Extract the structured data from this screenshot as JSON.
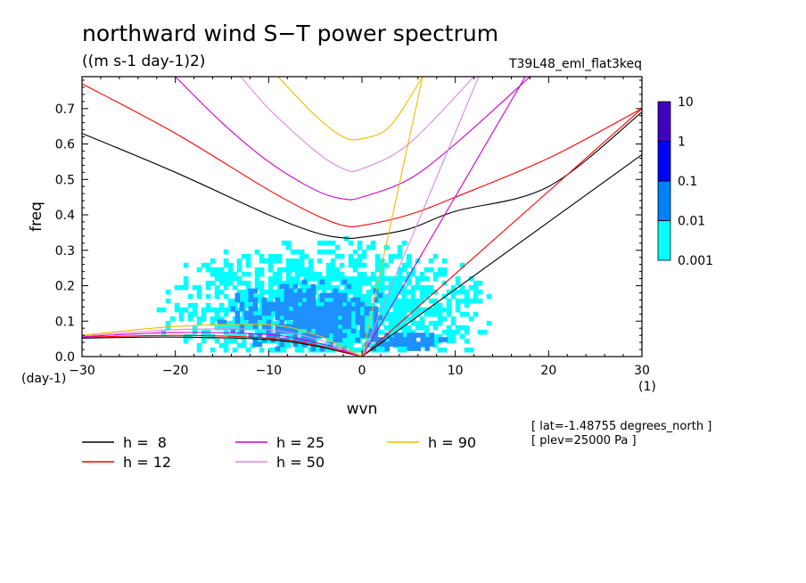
{
  "chart_data": {
    "type": "heatmap",
    "title": "northward wind S−T power spectrum",
    "units": "((m s-1 day-1)2)",
    "experiment": "T39L48_eml_flat3keq",
    "xlabel": "wvn",
    "ylabel": "freq",
    "x_unit": "(1)",
    "y_unit": "(day-1)",
    "xlim": [
      -30,
      30
    ],
    "ylim": [
      0,
      0.79
    ],
    "xticks": [
      "−30",
      "−20",
      "−10",
      "0",
      "10",
      "20",
      "30"
    ],
    "xtick_values": [
      -30,
      -20,
      -10,
      0,
      10,
      20,
      30
    ],
    "yticks": [
      "0.0",
      "0.1",
      "0.2",
      "0.3",
      "0.4",
      "0.5",
      "0.6",
      "0.7"
    ],
    "ytick_values": [
      0,
      0.1,
      0.2,
      0.3,
      0.4,
      0.5,
      0.6,
      0.7
    ],
    "colorbar": {
      "levels": [
        "0.001",
        "0.01",
        "0.1",
        "1",
        "10"
      ],
      "colors": [
        "#00ffff",
        "#0080ff",
        "#0000ff",
        "#4000c0"
      ]
    },
    "contour_regions": [
      {
        "level": "0.001",
        "color": "#00ffff",
        "x": [
          -22,
          14
        ],
        "y": [
          0.02,
          0.34
        ],
        "cx": -4,
        "cy": 0.14
      },
      {
        "level": "0.01",
        "color": "#1e90ff",
        "x": [
          -16,
          2
        ],
        "y": [
          0.02,
          0.23
        ],
        "cx": -6,
        "cy": 0.12
      },
      {
        "level": "0.01",
        "color": "#1e90ff",
        "x": [
          1,
          10
        ],
        "y": [
          0.02,
          0.08
        ],
        "cx": 4,
        "cy": 0.05
      }
    ],
    "legend": [
      {
        "label": "h =  8",
        "color": "#000000"
      },
      {
        "label": "h = 12",
        "color": "#ff0000"
      },
      {
        "label": "h = 25",
        "color": "#cc00cc"
      },
      {
        "label": "h = 50",
        "color": "#dd88dd"
      },
      {
        "label": "h = 90",
        "color": "#eebb00"
      }
    ],
    "annotations": [
      "[ lat=-1.48755 degrees_north ]",
      "[ plev=25000 Pa ]"
    ],
    "curves": {
      "wig": [
        {
          "h": 8,
          "color": "#000000",
          "x": [
            -30,
            -20,
            -10,
            -5,
            -2,
            0,
            5,
            10,
            20,
            30
          ],
          "y": [
            0.63,
            0.52,
            0.4,
            0.35,
            0.335,
            0.337,
            0.36,
            0.41,
            0.48,
            0.69
          ]
        },
        {
          "h": 12,
          "color": "#ff0000",
          "x": [
            -30,
            -20,
            -10,
            -5,
            -2,
            0,
            5,
            10,
            20,
            30
          ],
          "y": [
            0.77,
            0.63,
            0.47,
            0.4,
            0.37,
            0.37,
            0.4,
            0.45,
            0.56,
            0.7
          ]
        },
        {
          "h": 25,
          "color": "#cc00cc",
          "x": [
            -20,
            -15,
            -10,
            -5,
            -2,
            0,
            5,
            10,
            18
          ],
          "y": [
            0.79,
            0.66,
            0.55,
            0.47,
            0.445,
            0.45,
            0.5,
            0.6,
            0.79
          ]
        },
        {
          "h": 50,
          "color": "#dd88dd",
          "x": [
            -13,
            -10,
            -5,
            -2,
            0,
            5,
            12
          ],
          "y": [
            0.79,
            0.7,
            0.58,
            0.53,
            0.53,
            0.6,
            0.79
          ]
        },
        {
          "h": 90,
          "color": "#eebb00",
          "x": [
            -9,
            -5,
            -2,
            0,
            3,
            6.5
          ],
          "y": [
            0.79,
            0.68,
            0.62,
            0.615,
            0.65,
            0.79
          ]
        }
      ],
      "kelvin": [
        {
          "h": 8,
          "color": "#000000",
          "x": [
            0,
            30
          ],
          "y": [
            0,
            0.57
          ]
        },
        {
          "h": 12,
          "color": "#ff0000",
          "x": [
            0,
            30
          ],
          "y": [
            0,
            0.7
          ]
        },
        {
          "h": 25,
          "color": "#cc00cc",
          "x": [
            0,
            17.5
          ],
          "y": [
            0,
            0.79
          ]
        },
        {
          "h": 50,
          "color": "#dd88dd",
          "x": [
            0,
            12.5
          ],
          "y": [
            0,
            0.79
          ]
        },
        {
          "h": 90,
          "color": "#eebb00",
          "x": [
            0,
            6.5
          ],
          "y": [
            0,
            0.79
          ]
        }
      ],
      "rossby": [
        {
          "h": 8,
          "color": "#000000",
          "x": [
            -30,
            -20,
            -10,
            -5,
            -2,
            0
          ],
          "y": [
            0.052,
            0.055,
            0.048,
            0.03,
            0.012,
            0
          ]
        },
        {
          "h": 12,
          "color": "#ff0000",
          "x": [
            -30,
            -20,
            -10,
            -5,
            -2,
            0
          ],
          "y": [
            0.054,
            0.06,
            0.052,
            0.033,
            0.014,
            0
          ]
        },
        {
          "h": 25,
          "color": "#cc00cc",
          "x": [
            -30,
            -20,
            -10,
            -5,
            -2,
            0
          ],
          "y": [
            0.056,
            0.068,
            0.062,
            0.04,
            0.017,
            0
          ]
        },
        {
          "h": 50,
          "color": "#dd88dd",
          "x": [
            -30,
            -20,
            -10,
            -5,
            -2,
            0
          ],
          "y": [
            0.058,
            0.076,
            0.075,
            0.05,
            0.021,
            0
          ]
        },
        {
          "h": 90,
          "color": "#eebb00",
          "x": [
            -30,
            -20,
            -10,
            -5,
            -2,
            0
          ],
          "y": [
            0.06,
            0.085,
            0.09,
            0.062,
            0.027,
            0
          ]
        }
      ]
    }
  }
}
